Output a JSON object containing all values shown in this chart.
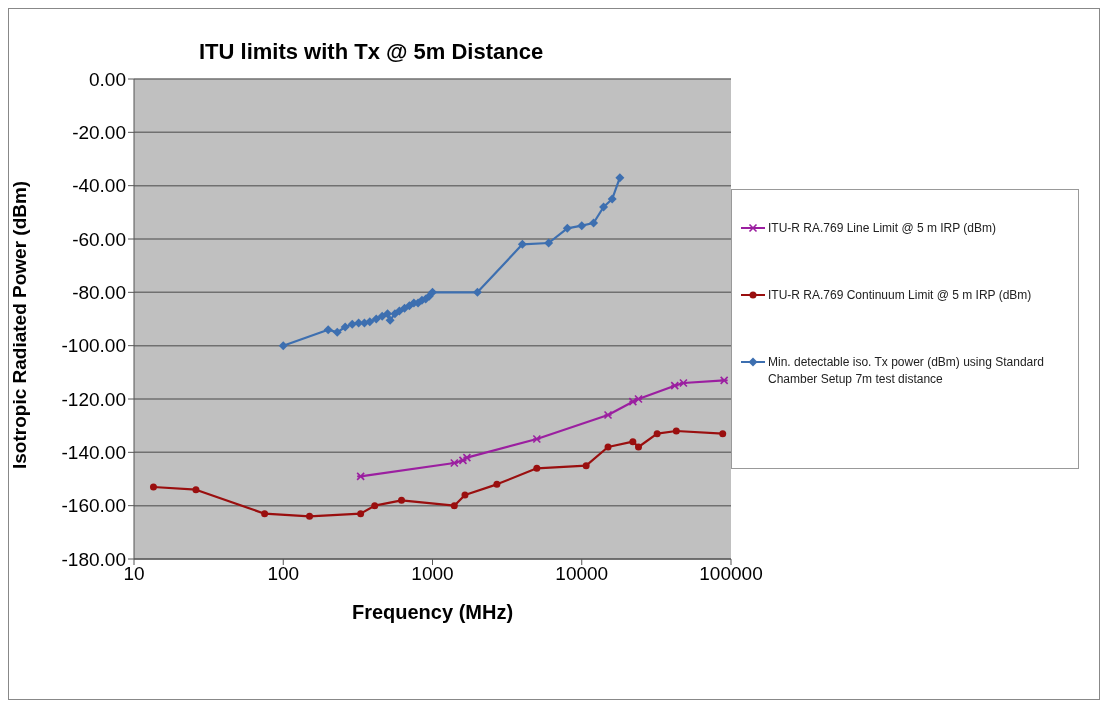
{
  "chart_data": {
    "type": "line",
    "title": "ITU limits with Tx @ 5m Distance",
    "xlabel": "Frequency (MHz)",
    "ylabel": "Isotropic Radiated Power (dBm)",
    "log": "x",
    "xlim": [
      10,
      100000
    ],
    "xticks": [
      10,
      100,
      1000,
      10000,
      100000
    ],
    "ylim": [
      -180,
      0
    ],
    "yticks": [
      {
        "value": 0,
        "label": "0.00"
      },
      {
        "value": -20,
        "label": "-20.00"
      },
      {
        "value": -40,
        "label": "-40.00"
      },
      {
        "value": -60,
        "label": "-60.00"
      },
      {
        "value": -80,
        "label": "-80.00"
      },
      {
        "value": -100,
        "label": "-100.00"
      },
      {
        "value": -120,
        "label": "-120.00"
      },
      {
        "value": -140,
        "label": "-140.00"
      },
      {
        "value": -160,
        "label": "-160.00"
      },
      {
        "value": -180,
        "label": "-180.00"
      }
    ],
    "grid": "y",
    "legend": "right",
    "line_style": "solid",
    "series": [
      {
        "name": "ITU-R RA.769 Line Limit @ 5 m IRP (dBm)",
        "color": "#9b1fa0",
        "marker": "cross",
        "x": [
          330,
          1400,
          1600,
          1700,
          5000,
          15000,
          22000,
          24000,
          42000,
          48000,
          90000
        ],
        "values": [
          -149,
          -144,
          -143,
          -142,
          -135,
          -126,
          -121,
          -120,
          -115,
          -114,
          -113
        ]
      },
      {
        "name": "ITU-R RA.769 Continuum Limit @ 5 m IRP (dBm)",
        "color": "#9a0f0f",
        "marker": "circle",
        "x": [
          13.5,
          26,
          75,
          150,
          330,
          410,
          620,
          1400,
          1650,
          2700,
          5000,
          10700,
          15000,
          22000,
          24000,
          32000,
          43000,
          88000
        ],
        "values": [
          -153,
          -154,
          -163,
          -164,
          -163,
          -160,
          -158,
          -160,
          -156,
          -152,
          -146,
          -145,
          -138,
          -136,
          -138,
          -133,
          -132,
          -133
        ]
      },
      {
        "name": "Min. detectable iso. Tx power (dBm) using Standard Chamber Setup 7m test distance",
        "color": "#3d6fb0",
        "marker": "diamond",
        "x": [
          100,
          200,
          230,
          260,
          290,
          320,
          350,
          380,
          420,
          460,
          500,
          520,
          560,
          600,
          650,
          700,
          750,
          800,
          850,
          900,
          950,
          1000,
          2000,
          4000,
          6000,
          8000,
          10000,
          12000,
          14000,
          16000,
          18000
        ],
        "values": [
          -100,
          -94,
          -95,
          -93,
          -92,
          -91.5,
          -91.5,
          -91,
          -90,
          -89,
          -88,
          -90.5,
          -88,
          -87,
          -86,
          -85,
          -84,
          -84,
          -83,
          -82.5,
          -81.5,
          -80,
          -80,
          -62,
          -61.5,
          -56,
          -55,
          -54,
          -48,
          -45,
          -37
        ]
      }
    ]
  }
}
